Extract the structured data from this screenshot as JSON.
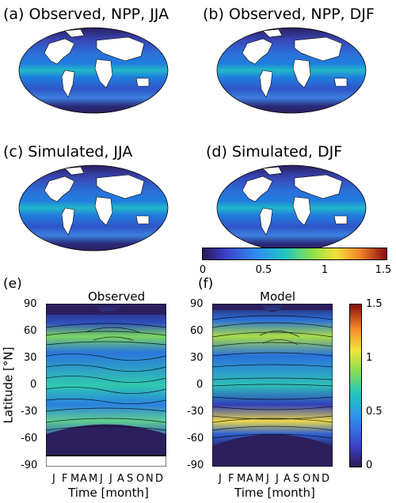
{
  "maps": [
    {
      "label": "(a)  Observed, NPP, JJA"
    },
    {
      "label": "(b) Observed, NPP, DJF"
    },
    {
      "label": "(c)  Simulated, JJA"
    },
    {
      "label": "(d)  Simulated, DJF"
    }
  ],
  "colorbar_h": {
    "ticks": [
      "0",
      "0.5",
      "1",
      "1.5"
    ]
  },
  "hovmoller": {
    "e_label": "(e)",
    "f_label": "(f)",
    "e_title": "Observed",
    "f_title": "Model",
    "ylabel": "Latitude [°N]",
    "xlabel": "Time [month]",
    "y_ticks": [
      "90",
      "60",
      "30",
      "0",
      "-30",
      "-60",
      "-90"
    ],
    "x_ticks": [
      "J",
      "F",
      "M",
      "A",
      "M",
      "J",
      "J",
      "A",
      "S",
      "O",
      "N",
      "D"
    ]
  },
  "colorbar_v": {
    "ticks": [
      "1.5",
      "1",
      "0.5",
      "0"
    ]
  },
  "chart_data": [
    {
      "type": "heatmap",
      "title": "(a)  Observed, NPP, JJA"
    },
    {
      "type": "heatmap",
      "title": "(b) Observed, NPP, DJF"
    },
    {
      "type": "heatmap",
      "title": "(c)  Simulated, JJA"
    },
    {
      "type": "heatmap",
      "title": "(d)  Simulated, DJF"
    },
    {
      "type": "heatmap",
      "title": "Observed",
      "xlabel": "Time [month]",
      "ylabel": "Latitude [°N]",
      "x_ticks": [
        "J",
        "F",
        "M",
        "A",
        "M",
        "J",
        "J",
        "A",
        "S",
        "O",
        "N",
        "D"
      ],
      "y_ticks": [
        90,
        60,
        30,
        0,
        -30,
        -60,
        -90
      ],
      "ylim": [
        -90,
        90
      ]
    },
    {
      "type": "heatmap",
      "title": "Model",
      "xlabel": "Time [month]",
      "ylabel": "Latitude [°N]",
      "x_ticks": [
        "J",
        "F",
        "M",
        "A",
        "M",
        "J",
        "J",
        "A",
        "S",
        "O",
        "N",
        "D"
      ],
      "y_ticks": [
        90,
        60,
        30,
        0,
        -30,
        -60,
        -90
      ],
      "ylim": [
        -90,
        90
      ],
      "colorbar_ticks": [
        0,
        0.5,
        1,
        1.5
      ],
      "colorbar_range": [
        0,
        1.5
      ]
    }
  ]
}
